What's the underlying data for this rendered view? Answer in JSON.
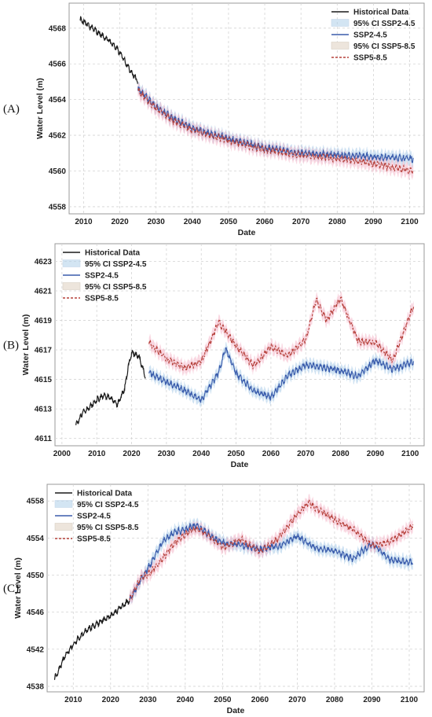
{
  "chart_data": [
    {
      "type": "line",
      "panel_label": "(A)",
      "xlabel": "Date",
      "ylabel": "Water Level (m)",
      "xlim": [
        2006,
        2104
      ],
      "ylim": [
        4557.6,
        4569.4
      ],
      "xticks": [
        "2010",
        "2020",
        "2030",
        "2040",
        "2050",
        "2060",
        "2070",
        "2080",
        "2090",
        "2100"
      ],
      "yticks": [
        "4558",
        "4560",
        "4562",
        "4564",
        "4566",
        "4568"
      ],
      "grid": true,
      "legend_position": "top-right",
      "legend": [
        "Historical Data",
        "95% CI SSP2-4.5",
        "SSP2-4.5",
        "95% CI SSP5-8.5",
        "SSP5-8.5"
      ],
      "series": [
        {
          "name": "Historical Data",
          "x": [
            2009,
            2011,
            2013,
            2015,
            2017,
            2019,
            2021,
            2023,
            2025
          ],
          "y": [
            4568.5,
            4568.2,
            4567.9,
            4567.6,
            4567.3,
            4566.9,
            4566.3,
            4565.6,
            4565.0
          ]
        },
        {
          "name": "SSP2-4.5",
          "x": [
            2025,
            2030,
            2035,
            2040,
            2045,
            2050,
            2060,
            2070,
            2080,
            2090,
            2101
          ],
          "y": [
            4564.6,
            4563.6,
            4562.9,
            4562.4,
            4562.1,
            4561.8,
            4561.3,
            4561.0,
            4560.9,
            4560.8,
            4560.7
          ]
        },
        {
          "name": "SSP5-8.5",
          "x": [
            2025,
            2030,
            2035,
            2040,
            2045,
            2050,
            2060,
            2070,
            2080,
            2090,
            2101
          ],
          "y": [
            4564.5,
            4563.5,
            4562.8,
            4562.3,
            4562.0,
            4561.7,
            4561.2,
            4560.9,
            4560.7,
            4560.4,
            4560.0
          ]
        }
      ]
    },
    {
      "type": "line",
      "panel_label": "(B)",
      "xlabel": "Date",
      "ylabel": "Water Level (m)",
      "xlim": [
        1998,
        2104
      ],
      "ylim": [
        4610.5,
        4624.2
      ],
      "xticks": [
        "2000",
        "2010",
        "2020",
        "2030",
        "2040",
        "2050",
        "2060",
        "2070",
        "2080",
        "2090",
        "2100"
      ],
      "yticks": [
        "4611",
        "4613",
        "4615",
        "4617",
        "4619",
        "4621",
        "4623"
      ],
      "grid": true,
      "legend_position": "top-left",
      "legend": [
        "Historical Data",
        "95% CI SSP2-4.5",
        "SSP2-4.5",
        "95% CI SSP5-8.5",
        "SSP5-8.5"
      ],
      "series": [
        {
          "name": "Historical Data",
          "x": [
            2004,
            2006,
            2008,
            2010,
            2012,
            2014,
            2016,
            2018,
            2019,
            2020,
            2022,
            2024
          ],
          "y": [
            4611.9,
            4612.8,
            4613.1,
            4613.6,
            4613.9,
            4613.7,
            4613.3,
            4614.4,
            4615.8,
            4616.8,
            4616.6,
            4615.2
          ]
        },
        {
          "name": "SSP2-4.5",
          "x": [
            2025,
            2030,
            2035,
            2040,
            2045,
            2047,
            2050,
            2055,
            2060,
            2065,
            2070,
            2075,
            2080,
            2085,
            2090,
            2095,
            2101
          ],
          "y": [
            4615.5,
            4614.8,
            4614.3,
            4613.6,
            4615.5,
            4617.1,
            4615.4,
            4614.2,
            4613.8,
            4615.3,
            4616.0,
            4615.8,
            4615.6,
            4615.2,
            4616.3,
            4615.7,
            4616.2
          ]
        },
        {
          "name": "SSP5-8.5",
          "x": [
            2025,
            2030,
            2035,
            2040,
            2045,
            2050,
            2055,
            2060,
            2065,
            2070,
            2073,
            2076,
            2080,
            2085,
            2090,
            2095,
            2101
          ],
          "y": [
            4617.5,
            4616.4,
            4615.8,
            4616.2,
            4618.9,
            4617.3,
            4615.9,
            4617.2,
            4616.6,
            4617.7,
            4620.4,
            4619.0,
            4620.5,
            4617.6,
            4617.5,
            4616.3,
            4620.0
          ]
        }
      ]
    },
    {
      "type": "line",
      "panel_label": "(C)",
      "xlabel": "Date",
      "ylabel": "Water Level (m)",
      "xlim": [
        2003,
        2104
      ],
      "ylim": [
        4537.4,
        4559.8
      ],
      "xticks": [
        "2010",
        "2020",
        "2030",
        "2040",
        "2050",
        "2060",
        "2070",
        "2080",
        "2090",
        "2100"
      ],
      "yticks": [
        "4538",
        "4542",
        "4546",
        "4550",
        "4554",
        "4558"
      ],
      "grid": true,
      "legend_position": "top-left",
      "legend": [
        "Historical Data",
        "95% CI SSP2-4.5",
        "SSP2-4.5",
        "95% CI SSP5-8.5",
        "SSP5-8.5"
      ],
      "series": [
        {
          "name": "Historical Data",
          "x": [
            2005,
            2008,
            2011,
            2014,
            2017,
            2020,
            2023,
            2025
          ],
          "y": [
            4538.8,
            4541.4,
            4543.0,
            4544.2,
            4544.9,
            4545.6,
            4546.6,
            4547.3
          ]
        },
        {
          "name": "SSP2-4.5",
          "x": [
            2025,
            2028,
            2031,
            2034,
            2037,
            2040,
            2043,
            2047,
            2050,
            2055,
            2060,
            2065,
            2070,
            2075,
            2080,
            2085,
            2090,
            2095,
            2101
          ],
          "y": [
            4547.3,
            4549.4,
            4551.4,
            4553.6,
            4554.6,
            4554.9,
            4555.4,
            4554.2,
            4553.5,
            4553.2,
            4552.8,
            4553.1,
            4554.2,
            4552.9,
            4552.6,
            4551.8,
            4553.4,
            4551.6,
            4551.4
          ]
        },
        {
          "name": "SSP5-8.5",
          "x": [
            2025,
            2028,
            2031,
            2034,
            2037,
            2040,
            2043,
            2047,
            2050,
            2055,
            2060,
            2065,
            2070,
            2073,
            2076,
            2080,
            2085,
            2090,
            2095,
            2101
          ],
          "y": [
            4547.3,
            4549.6,
            4550.4,
            4551.8,
            4553.4,
            4554.4,
            4555.1,
            4554.0,
            4553.0,
            4553.8,
            4552.5,
            4554.0,
            4556.6,
            4557.8,
            4557.0,
            4556.0,
            4554.9,
            4553.2,
            4553.6,
            4555.3
          ]
        }
      ]
    }
  ],
  "colors": {
    "historical": "#1a1a1a",
    "ssp245": "#3a5cac",
    "ssp245_ci": "#a8cbe8",
    "ssp585": "#b5403a",
    "ssp585_ci": "#f4b7c8",
    "grid": "#d4d4d4",
    "frame": "#999999"
  }
}
